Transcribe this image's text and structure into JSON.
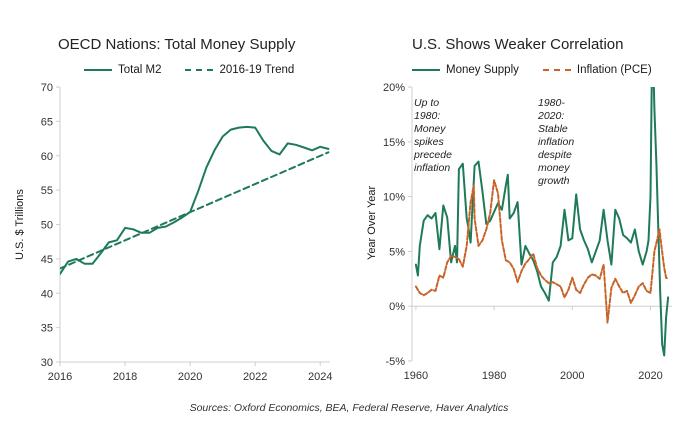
{
  "source": "Sources: Oxford Economics, BEA, Federal Reserve, Haver Analytics",
  "colors": {
    "green": "#1f7a57",
    "orange": "#c8642a",
    "axis": "#cfcfcf"
  },
  "chart_data": [
    {
      "type": "line",
      "title": "OECD Nations: Total Money Supply",
      "ylabel": "U.S. $ Trillions",
      "xlim": [
        2016,
        2024.3
      ],
      "ylim": [
        30,
        70
      ],
      "xticks": [
        2016,
        2018,
        2020,
        2022,
        2024
      ],
      "yticks": [
        30,
        35,
        40,
        45,
        50,
        55,
        60,
        65,
        70
      ],
      "legend_position": "top",
      "series": [
        {
          "name": "Total M2",
          "style": "solid",
          "x": [
            2016.0,
            2016.25,
            2016.5,
            2016.75,
            2017.0,
            2017.25,
            2017.5,
            2017.75,
            2018.0,
            2018.25,
            2018.5,
            2018.75,
            2019.0,
            2019.25,
            2019.5,
            2019.75,
            2020.0,
            2020.25,
            2020.5,
            2020.75,
            2021.0,
            2021.25,
            2021.5,
            2021.75,
            2022.0,
            2022.25,
            2022.5,
            2022.75,
            2023.0,
            2023.25,
            2023.5,
            2023.75,
            2024.0,
            2024.25
          ],
          "values": [
            42.8,
            44.6,
            45.0,
            44.3,
            44.3,
            45.8,
            47.4,
            47.7,
            49.5,
            49.3,
            48.8,
            48.8,
            49.5,
            49.7,
            50.3,
            51.0,
            51.8,
            54.9,
            58.3,
            60.8,
            62.8,
            63.8,
            64.1,
            64.2,
            64.1,
            62.2,
            60.7,
            60.2,
            61.8,
            61.6,
            61.2,
            60.8,
            61.3,
            61.0
          ]
        },
        {
          "name": "2016-19 Trend",
          "style": "dashed",
          "x": [
            2016.0,
            2024.25
          ],
          "values": [
            43.6,
            60.5
          ]
        }
      ]
    },
    {
      "type": "line",
      "title": "U.S. Shows Weaker Correlation",
      "ylabel": "Year Over Year",
      "xlim": [
        1959,
        2025.5
      ],
      "ylim": [
        -5,
        20
      ],
      "xticks": [
        1960,
        1980,
        2000,
        2020
      ],
      "yticks": [
        -5,
        0,
        5,
        10,
        15,
        20
      ],
      "ytick_labels": [
        "-5%",
        "0%",
        "5%",
        "10%",
        "15%",
        "20%"
      ],
      "legend_position": "top",
      "annotations": [
        {
          "lines": [
            "Up to 1980: Money",
            "spikes precede",
            "inflation"
          ]
        },
        {
          "lines": [
            "1980-2020: Stable",
            "inflation despite",
            "money growth"
          ]
        }
      ],
      "series": [
        {
          "name": "Money Supply",
          "style": "solid",
          "x": [
            1960.0,
            1960.5,
            1961,
            1962,
            1963,
            1964,
            1965,
            1966,
            1967,
            1968,
            1969,
            1970,
            1970.5,
            1971,
            1972,
            1973,
            1973.5,
            1974,
            1975,
            1976,
            1977,
            1978,
            1979,
            1980,
            1981,
            1982,
            1983,
            1983.5,
            1984,
            1985,
            1986,
            1987,
            1988,
            1989,
            1990,
            1991,
            1992,
            1993,
            1994,
            1995,
            1996,
            1997,
            1998,
            1999,
            2000,
            2001,
            2002,
            2003,
            2004,
            2005,
            2006,
            2007,
            2008,
            2009,
            2010,
            2011,
            2012,
            2013,
            2014,
            2015,
            2016,
            2017,
            2018,
            2019,
            2019.5,
            2020.0,
            2020.3,
            2020.6,
            2021.0,
            2021.5,
            2022.0,
            2022.5,
            2023.0,
            2023.5,
            2024.0,
            2024.5
          ],
          "values": [
            3.8,
            2.8,
            5.5,
            7.8,
            8.3,
            8.0,
            8.5,
            5.2,
            9.2,
            8.1,
            4.0,
            5.5,
            4.0,
            12.5,
            13.0,
            8.0,
            7.0,
            5.8,
            12.8,
            13.2,
            10.5,
            7.5,
            7.8,
            8.6,
            9.4,
            8.8,
            11.0,
            12.0,
            8.0,
            8.5,
            9.5,
            3.8,
            5.5,
            4.8,
            4.2,
            3.2,
            1.8,
            1.2,
            0.5,
            4.0,
            4.5,
            5.5,
            8.8,
            6.0,
            6.2,
            10.2,
            7.0,
            6.0,
            5.2,
            4.0,
            5.0,
            6.0,
            8.8,
            6.0,
            3.8,
            8.8,
            8.0,
            6.5,
            6.2,
            5.8,
            7.0,
            5.0,
            3.8,
            5.0,
            6.0,
            10.0,
            20.0,
            24.0,
            18.0,
            13.0,
            7.0,
            1.0,
            -3.5,
            -4.5,
            -1.0,
            0.8
          ]
        },
        {
          "name": "Inflation (PCE)",
          "style": "dashed",
          "x": [
            1960,
            1961,
            1962,
            1963,
            1964,
            1965,
            1966,
            1967,
            1968,
            1969,
            1970,
            1971,
            1972,
            1973,
            1974,
            1974.8,
            1975,
            1976,
            1977,
            1978,
            1979,
            1980,
            1981,
            1982,
            1983,
            1984,
            1985,
            1986,
            1987,
            1988,
            1989,
            1990,
            1991,
            1992,
            1993,
            1994,
            1995,
            1996,
            1997,
            1998,
            1999,
            2000,
            2001,
            2002,
            2003,
            2004,
            2005,
            2006,
            2007,
            2008,
            2009,
            2010,
            2011,
            2012,
            2013,
            2014,
            2015,
            2016,
            2017,
            2018,
            2019,
            2020,
            2021,
            2021.8,
            2022.3,
            2022.8,
            2023.5,
            2024,
            2024.5
          ],
          "values": [
            1.8,
            1.2,
            1.0,
            1.2,
            1.5,
            1.4,
            2.8,
            2.6,
            4.0,
            4.6,
            4.5,
            4.3,
            3.6,
            5.5,
            9.5,
            11.0,
            8.0,
            5.5,
            6.0,
            7.0,
            8.5,
            11.5,
            10.3,
            6.0,
            4.2,
            4.0,
            3.4,
            2.2,
            3.2,
            3.9,
            4.3,
            4.8,
            3.5,
            2.8,
            2.4,
            2.1,
            2.2,
            2.0,
            1.8,
            0.8,
            1.5,
            2.6,
            1.5,
            1.2,
            2.0,
            2.6,
            2.9,
            2.8,
            2.5,
            3.8,
            -1.5,
            1.7,
            2.5,
            1.8,
            1.2,
            1.4,
            0.3,
            1.0,
            1.8,
            2.1,
            1.4,
            1.2,
            5.0,
            6.2,
            7.0,
            5.5,
            3.5,
            2.6,
            2.5
          ]
        }
      ]
    }
  ]
}
